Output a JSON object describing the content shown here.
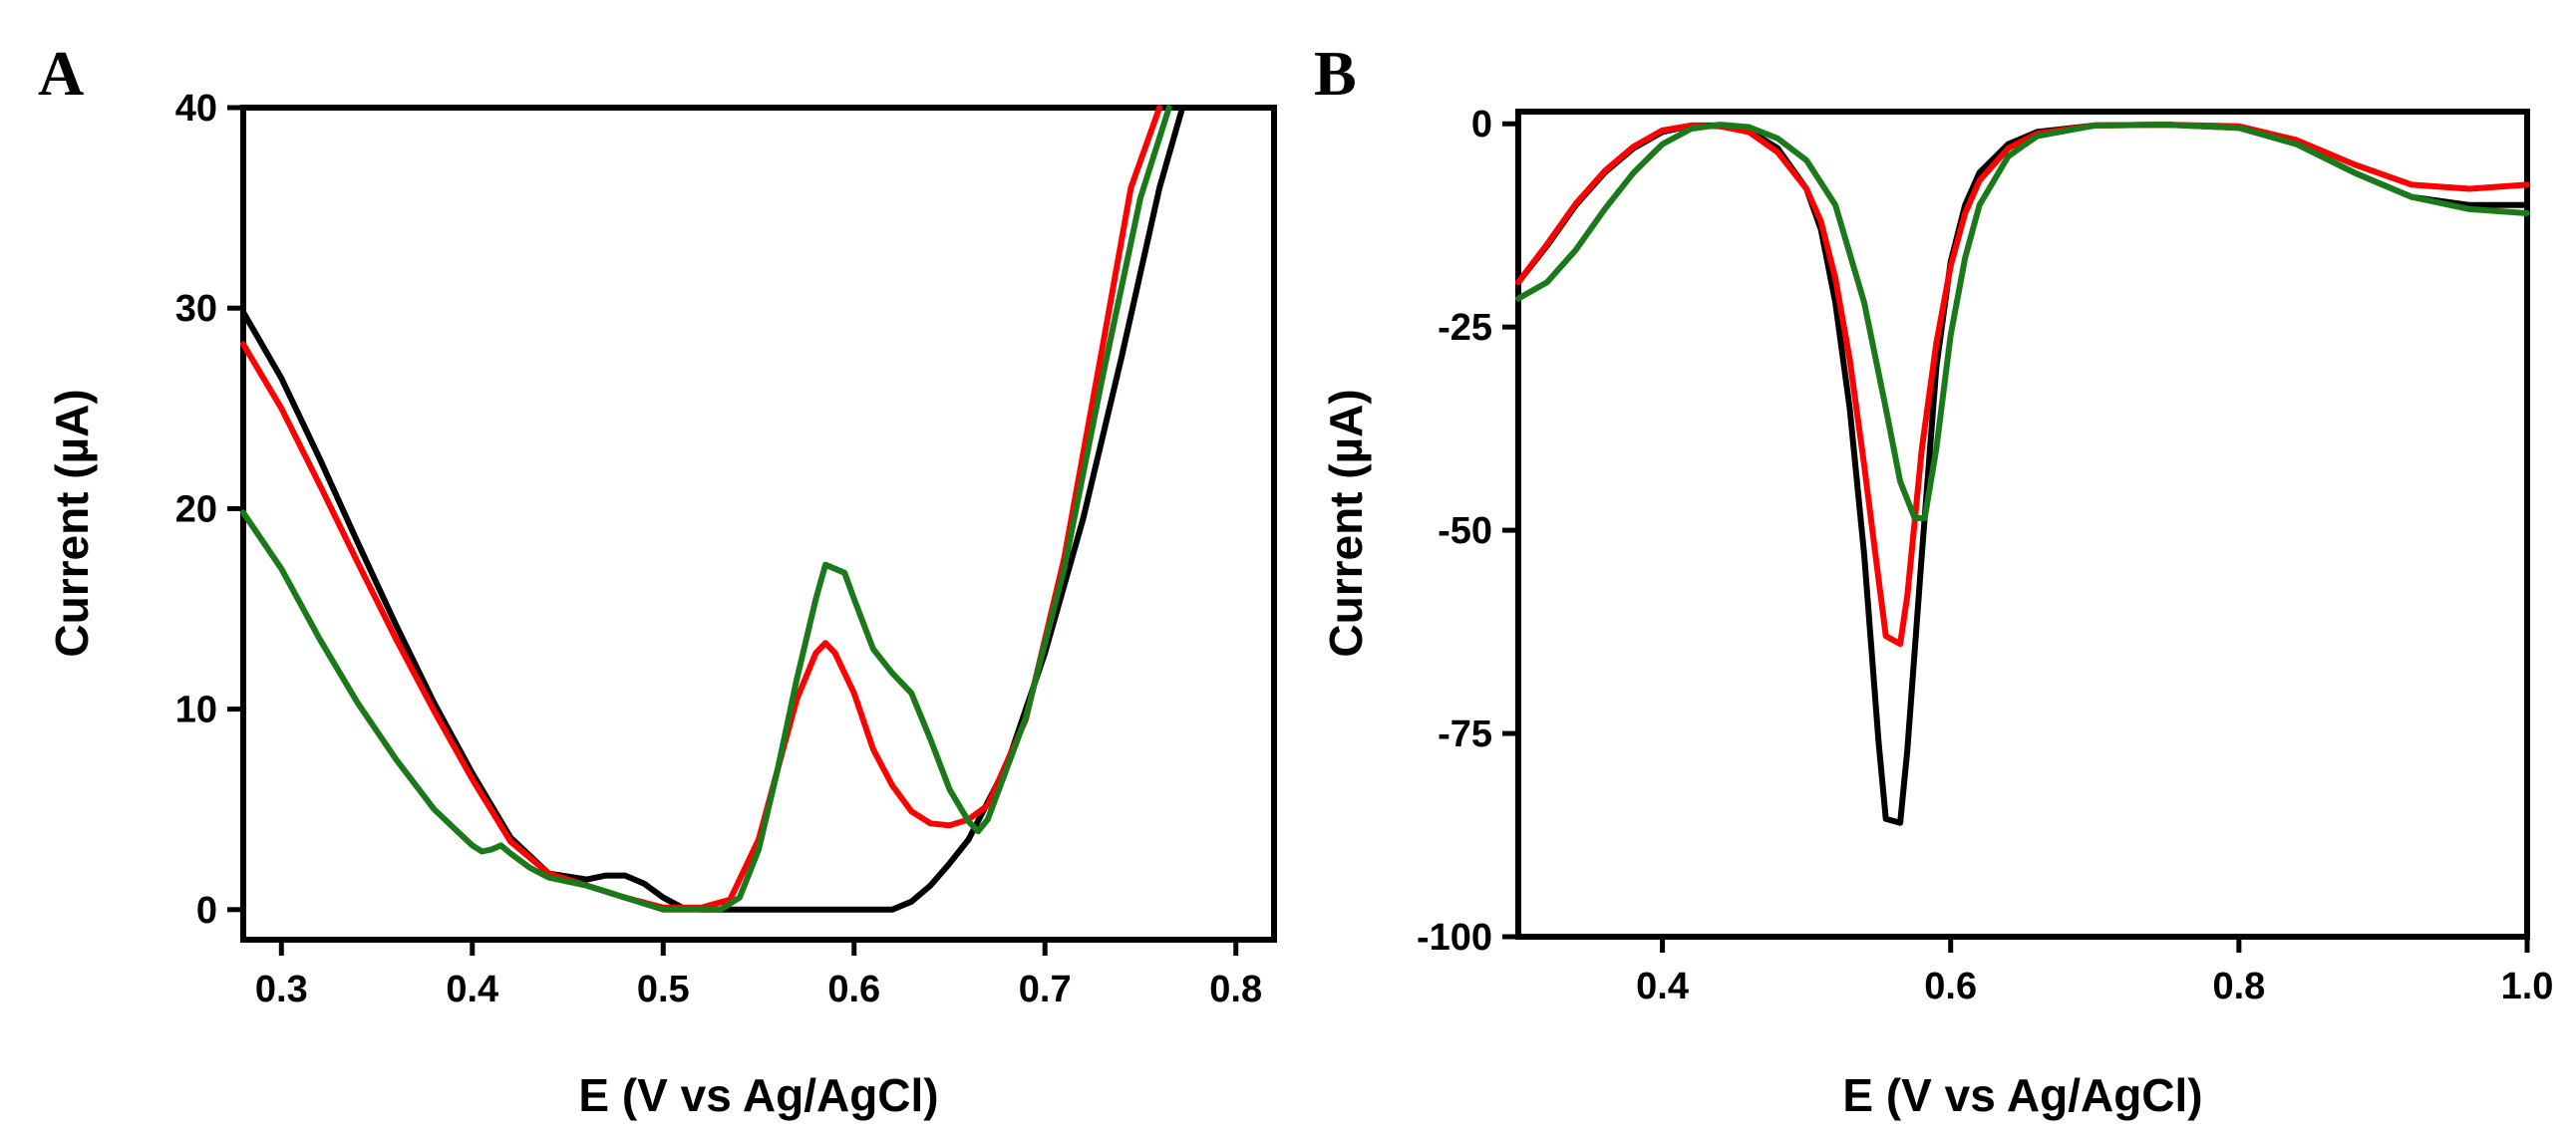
{
  "chart_data": [
    {
      "panel": "A",
      "type": "line",
      "xlabel": "E (V vs Ag/AgCl)",
      "ylabel": "Current (µA)",
      "xlim": [
        0.28,
        0.82
      ],
      "ylim": [
        -1.5,
        40
      ],
      "xticks": [
        0.3,
        0.4,
        0.5,
        0.6,
        0.7,
        0.8
      ],
      "yticks": [
        0,
        10,
        20,
        30,
        40
      ],
      "xtick_labels": [
        "0.3",
        "0.4",
        "0.5",
        "0.6",
        "0.7",
        "0.8"
      ],
      "ytick_labels": [
        "0",
        "10",
        "20",
        "30",
        "40"
      ],
      "grid": false,
      "series": [
        {
          "color": "#000000",
          "points": [
            [
              0.28,
              29.8
            ],
            [
              0.3,
              26.5
            ],
            [
              0.32,
              22.5
            ],
            [
              0.34,
              18.3
            ],
            [
              0.36,
              14.2
            ],
            [
              0.38,
              10.3
            ],
            [
              0.4,
              6.8
            ],
            [
              0.42,
              3.6
            ],
            [
              0.44,
              1.8
            ],
            [
              0.46,
              1.5
            ],
            [
              0.47,
              1.7
            ],
            [
              0.48,
              1.7
            ],
            [
              0.49,
              1.3
            ],
            [
              0.5,
              0.6
            ],
            [
              0.51,
              0.1
            ],
            [
              0.52,
              0
            ],
            [
              0.55,
              0
            ],
            [
              0.58,
              0
            ],
            [
              0.6,
              0
            ],
            [
              0.62,
              0
            ],
            [
              0.63,
              0.4
            ],
            [
              0.64,
              1.2
            ],
            [
              0.65,
              2.3
            ],
            [
              0.66,
              3.5
            ],
            [
              0.68,
              7.2
            ],
            [
              0.7,
              12.8
            ],
            [
              0.72,
              19.5
            ],
            [
              0.74,
              27.5
            ],
            [
              0.76,
              36
            ],
            [
              0.772,
              40
            ]
          ]
        },
        {
          "color": "#ff0000",
          "points": [
            [
              0.28,
              28.2
            ],
            [
              0.3,
              25
            ],
            [
              0.32,
              21.2
            ],
            [
              0.34,
              17.3
            ],
            [
              0.36,
              13.5
            ],
            [
              0.38,
              9.9
            ],
            [
              0.4,
              6.5
            ],
            [
              0.42,
              3.4
            ],
            [
              0.44,
              1.8
            ],
            [
              0.46,
              1.2
            ],
            [
              0.48,
              0.6
            ],
            [
              0.5,
              0.1
            ],
            [
              0.52,
              0.1
            ],
            [
              0.535,
              0.5
            ],
            [
              0.55,
              3.5
            ],
            [
              0.56,
              7
            ],
            [
              0.57,
              10.5
            ],
            [
              0.58,
              12.8
            ],
            [
              0.585,
              13.3
            ],
            [
              0.59,
              12.8
            ],
            [
              0.6,
              10.8
            ],
            [
              0.61,
              8
            ],
            [
              0.62,
              6.2
            ],
            [
              0.63,
              4.9
            ],
            [
              0.64,
              4.3
            ],
            [
              0.65,
              4.2
            ],
            [
              0.66,
              4.5
            ],
            [
              0.67,
              5.2
            ],
            [
              0.69,
              9.5
            ],
            [
              0.71,
              17.5
            ],
            [
              0.73,
              28
            ],
            [
              0.745,
              36
            ],
            [
              0.76,
              40
            ]
          ]
        },
        {
          "color": "#1a7a1a",
          "points": [
            [
              0.28,
              19.8
            ],
            [
              0.3,
              17
            ],
            [
              0.32,
              13.5
            ],
            [
              0.34,
              10.3
            ],
            [
              0.36,
              7.5
            ],
            [
              0.38,
              5
            ],
            [
              0.4,
              3.2
            ],
            [
              0.405,
              2.9
            ],
            [
              0.41,
              3
            ],
            [
              0.415,
              3.2
            ],
            [
              0.42,
              2.8
            ],
            [
              0.43,
              2.1
            ],
            [
              0.44,
              1.6
            ],
            [
              0.46,
              1.2
            ],
            [
              0.48,
              0.6
            ],
            [
              0.5,
              0
            ],
            [
              0.53,
              0
            ],
            [
              0.54,
              0.6
            ],
            [
              0.55,
              3
            ],
            [
              0.56,
              7
            ],
            [
              0.57,
              11.5
            ],
            [
              0.58,
              15.5
            ],
            [
              0.585,
              17.2
            ],
            [
              0.595,
              16.8
            ],
            [
              0.6,
              15.5
            ],
            [
              0.61,
              13
            ],
            [
              0.62,
              11.8
            ],
            [
              0.63,
              10.8
            ],
            [
              0.64,
              8.5
            ],
            [
              0.65,
              6
            ],
            [
              0.66,
              4.4
            ],
            [
              0.665,
              3.9
            ],
            [
              0.67,
              4.5
            ],
            [
              0.69,
              9.6
            ],
            [
              0.71,
              17
            ],
            [
              0.73,
              26.5
            ],
            [
              0.75,
              35.5
            ],
            [
              0.765,
              40
            ]
          ]
        }
      ]
    },
    {
      "panel": "B",
      "type": "line",
      "xlabel": "E (V vs Ag/AgCl)",
      "ylabel": "Current (µA)",
      "xlim": [
        0.3,
        1.0
      ],
      "ylim": [
        -100,
        1.5
      ],
      "xticks": [
        0.4,
        0.6,
        0.8,
        1.0
      ],
      "yticks": [
        0,
        -25,
        -50,
        -75,
        -100
      ],
      "xtick_labels": [
        "0.4",
        "0.6",
        "0.8",
        "1.0"
      ],
      "ytick_labels": [
        "0",
        "-25",
        "-50",
        "-75",
        "-100"
      ],
      "grid": false,
      "series": [
        {
          "color": "#000000",
          "points": [
            [
              0.3,
              -19.5
            ],
            [
              0.32,
              -15
            ],
            [
              0.34,
              -10
            ],
            [
              0.36,
              -6
            ],
            [
              0.38,
              -3
            ],
            [
              0.4,
              -1
            ],
            [
              0.42,
              -0.2
            ],
            [
              0.44,
              -0.2
            ],
            [
              0.46,
              -0.8
            ],
            [
              0.48,
              -3
            ],
            [
              0.5,
              -8
            ],
            [
              0.51,
              -13
            ],
            [
              0.52,
              -22
            ],
            [
              0.53,
              -35
            ],
            [
              0.54,
              -53
            ],
            [
              0.55,
              -76
            ],
            [
              0.555,
              -85.5
            ],
            [
              0.565,
              -86
            ],
            [
              0.57,
              -77
            ],
            [
              0.58,
              -53
            ],
            [
              0.59,
              -30
            ],
            [
              0.6,
              -17
            ],
            [
              0.61,
              -10
            ],
            [
              0.62,
              -6
            ],
            [
              0.64,
              -2.5
            ],
            [
              0.66,
              -1
            ],
            [
              0.7,
              -0.2
            ],
            [
              0.75,
              -0.1
            ],
            [
              0.8,
              -0.5
            ],
            [
              0.84,
              -2.5
            ],
            [
              0.88,
              -6
            ],
            [
              0.92,
              -9
            ],
            [
              0.96,
              -10
            ],
            [
              1.0,
              -10
            ]
          ]
        },
        {
          "color": "#ff0000",
          "points": [
            [
              0.3,
              -19.5
            ],
            [
              0.32,
              -14.8
            ],
            [
              0.34,
              -9.8
            ],
            [
              0.36,
              -5.8
            ],
            [
              0.38,
              -2.8
            ],
            [
              0.4,
              -0.8
            ],
            [
              0.42,
              -0.2
            ],
            [
              0.44,
              -0.3
            ],
            [
              0.46,
              -1
            ],
            [
              0.48,
              -3.5
            ],
            [
              0.5,
              -8
            ],
            [
              0.51,
              -12
            ],
            [
              0.52,
              -19
            ],
            [
              0.53,
              -29
            ],
            [
              0.54,
              -42
            ],
            [
              0.55,
              -56
            ],
            [
              0.555,
              -63
            ],
            [
              0.565,
              -64
            ],
            [
              0.57,
              -58
            ],
            [
              0.58,
              -40
            ],
            [
              0.59,
              -27
            ],
            [
              0.6,
              -17.5
            ],
            [
              0.61,
              -11
            ],
            [
              0.62,
              -7
            ],
            [
              0.64,
              -3
            ],
            [
              0.66,
              -1.2
            ],
            [
              0.7,
              -0.2
            ],
            [
              0.75,
              -0.1
            ],
            [
              0.8,
              -0.3
            ],
            [
              0.84,
              -2
            ],
            [
              0.88,
              -5
            ],
            [
              0.92,
              -7.5
            ],
            [
              0.96,
              -8
            ],
            [
              1.0,
              -7.5
            ]
          ]
        },
        {
          "color": "#1a7a1a",
          "points": [
            [
              0.3,
              -21.5
            ],
            [
              0.32,
              -19.5
            ],
            [
              0.34,
              -15.5
            ],
            [
              0.36,
              -10.5
            ],
            [
              0.38,
              -6
            ],
            [
              0.4,
              -2.5
            ],
            [
              0.42,
              -0.6
            ],
            [
              0.44,
              -0.1
            ],
            [
              0.46,
              -0.4
            ],
            [
              0.48,
              -1.8
            ],
            [
              0.5,
              -4.5
            ],
            [
              0.52,
              -10
            ],
            [
              0.54,
              -22
            ],
            [
              0.555,
              -35
            ],
            [
              0.565,
              -44
            ],
            [
              0.575,
              -48.5
            ],
            [
              0.582,
              -48.5
            ],
            [
              0.59,
              -40
            ],
            [
              0.6,
              -26
            ],
            [
              0.61,
              -16.5
            ],
            [
              0.62,
              -10
            ],
            [
              0.64,
              -4
            ],
            [
              0.66,
              -1.5
            ],
            [
              0.7,
              -0.2
            ],
            [
              0.75,
              -0.1
            ],
            [
              0.8,
              -0.5
            ],
            [
              0.84,
              -2.5
            ],
            [
              0.88,
              -6
            ],
            [
              0.92,
              -9
            ],
            [
              0.96,
              -10.5
            ],
            [
              1.0,
              -11
            ]
          ]
        }
      ]
    }
  ],
  "panels": {
    "a": {
      "letter": "A",
      "xlabel": "E (V vs Ag/AgCl)",
      "ylabel": "Current (µA)"
    },
    "b": {
      "letter": "B",
      "xlabel": "E (V vs Ag/AgCl)",
      "ylabel": "Current (µA)"
    }
  }
}
